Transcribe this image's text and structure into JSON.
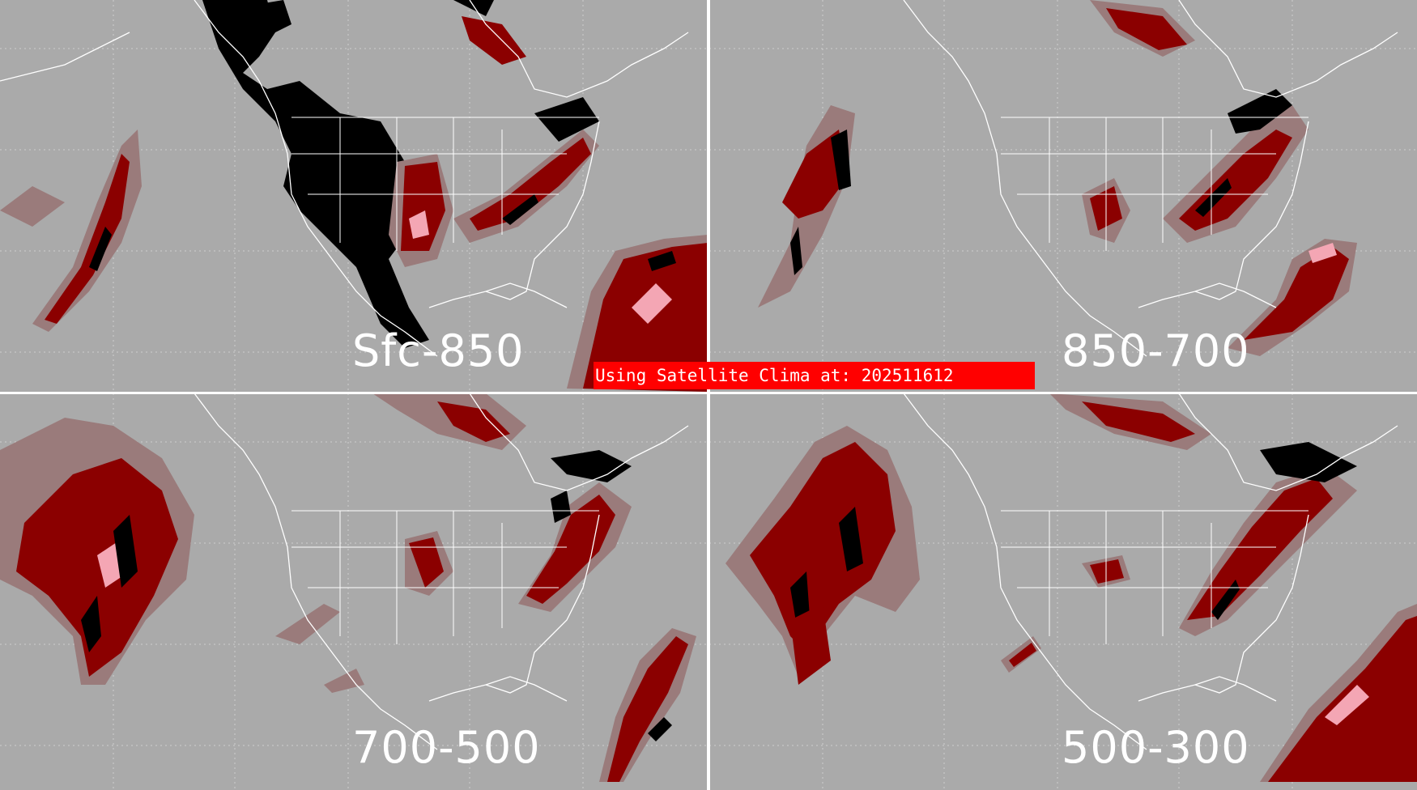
{
  "panels": [
    {
      "id": "tl",
      "label": "Sfc-850"
    },
    {
      "id": "tr",
      "label": "850-700"
    },
    {
      "id": "bl",
      "label": "700-500"
    },
    {
      "id": "br",
      "label": "500-300"
    }
  ],
  "banner": "Using Satellite Clima at: 202511612",
  "colors": {
    "background": "#aaaaaa",
    "coastline": "#ffffff",
    "grid": "#cfcfcf",
    "dark_red": "#8b0000",
    "mid_red": "#b01818",
    "light": "#9a7b7b",
    "pink": "#f4a6b4",
    "black": "#000000",
    "banner": "#ff0000"
  }
}
